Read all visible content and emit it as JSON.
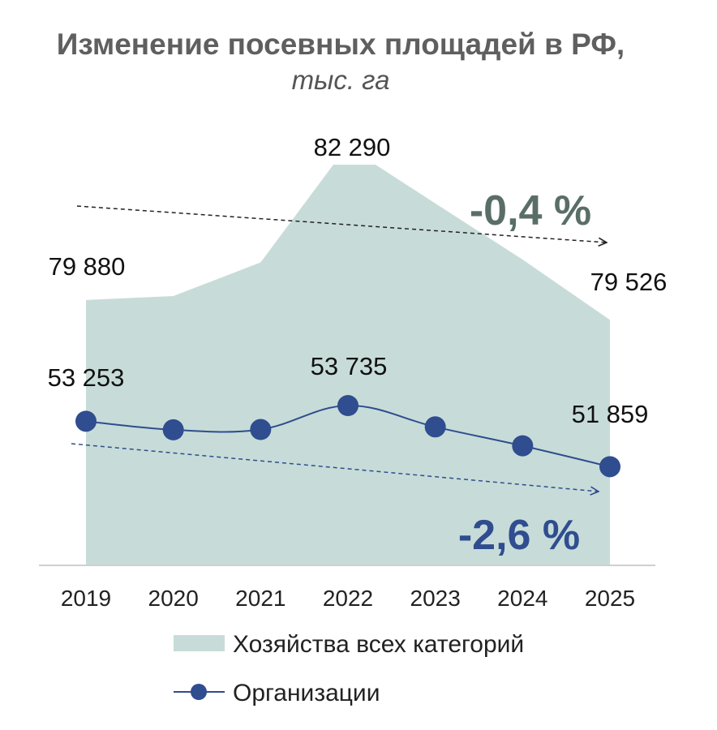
{
  "chart_data": {
    "type": "area",
    "title": "Изменение посевных площадей в РФ,",
    "subtitle": "тыс. га",
    "categories": [
      "2019",
      "2020",
      "2021",
      "2022",
      "2023",
      "2024",
      "2025"
    ],
    "series": [
      {
        "name": "Хозяйства всех категорий",
        "type": "area",
        "color": "#c7dcd8",
        "values": [
          79880,
          79950,
          80550,
          82290,
          81600,
          80600,
          79526
        ],
        "labels": [
          "79 880",
          "",
          "",
          "82 290",
          "",
          "",
          "79 526"
        ]
      },
      {
        "name": "Организации",
        "type": "line",
        "color": "#2f4d8f",
        "values": [
          53253,
          52990,
          53000,
          53735,
          53080,
          52500,
          51859
        ],
        "labels": [
          "53 253",
          "",
          "",
          "53 735",
          "",
          "",
          "51 859"
        ]
      }
    ],
    "annotations": [
      {
        "text": "-0,4 %",
        "series": "Хозяйства всех категорий",
        "color": "#5a6e68"
      },
      {
        "text": "-2,6 %",
        "series": "Организации",
        "color": "#2f4d8f"
      }
    ],
    "legend_position": "bottom",
    "grid": false
  }
}
